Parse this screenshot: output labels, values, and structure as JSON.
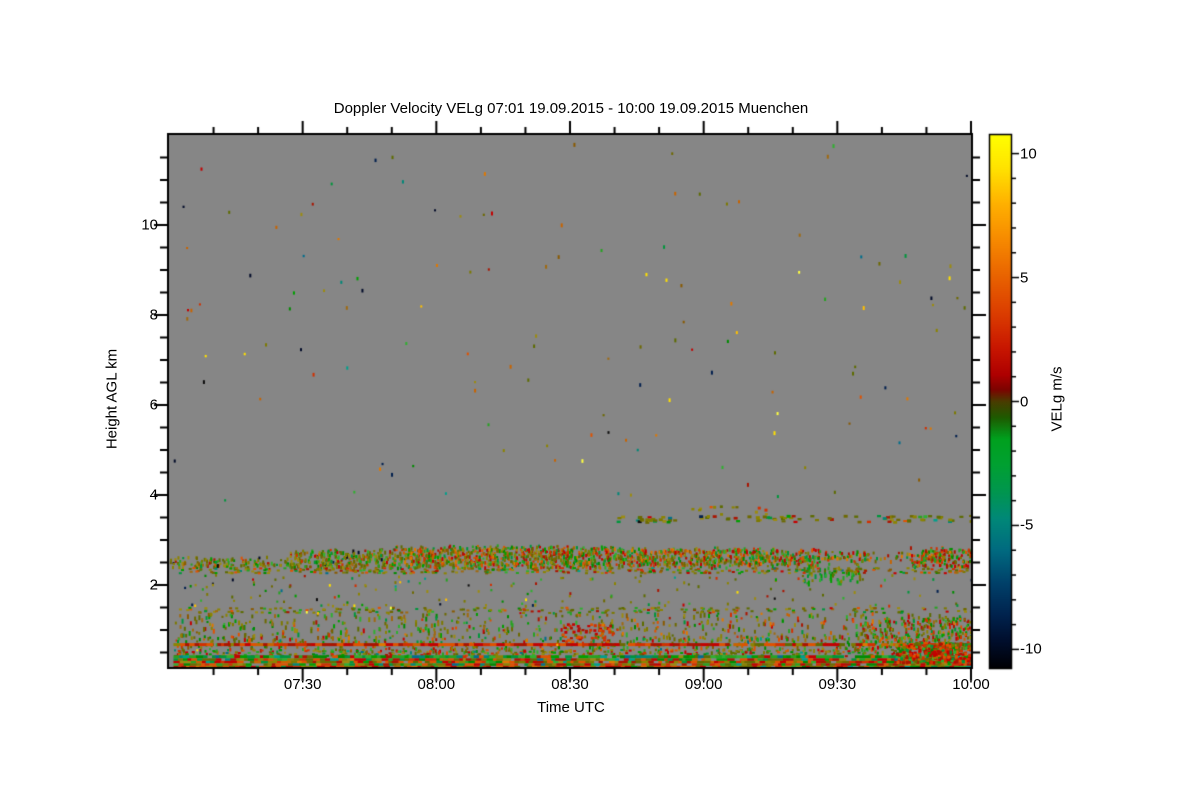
{
  "chart_data": {
    "type": "heatmap",
    "title": "Doppler Velocity VELg   07:01 19.09.2015 - 10:00 19.09.2015 Muenchen",
    "xlabel": "Time UTC",
    "ylabel": "Height AGL km",
    "plot_background": "#868686",
    "axis_color": "#000000",
    "x_axis": {
      "start_label": "07:01",
      "end_label": "10:00",
      "range_minutes": [
        420,
        600
      ],
      "minor_step_minutes": 10,
      "ticks": [
        {
          "minutes": 450,
          "label": "07:30"
        },
        {
          "minutes": 480,
          "label": "08:00"
        },
        {
          "minutes": 510,
          "label": "08:30"
        },
        {
          "minutes": 540,
          "label": "09:00"
        },
        {
          "minutes": 570,
          "label": "09:30"
        },
        {
          "minutes": 600,
          "label": "10:00"
        }
      ]
    },
    "y_axis": {
      "range_km": [
        0.178,
        12
      ],
      "minor_step_km": 0.5,
      "ticks": [
        {
          "km": 2,
          "label": "2"
        },
        {
          "km": 4,
          "label": "4"
        },
        {
          "km": 6,
          "label": "6"
        },
        {
          "km": 8,
          "label": "8"
        },
        {
          "km": 10,
          "label": "10"
        }
      ]
    },
    "colorbar": {
      "label": "VELg m/s",
      "value_min": -10.75,
      "value_max": 10.75,
      "minor_step": 1,
      "ticks": [
        {
          "value": 10,
          "label": "10"
        },
        {
          "value": 5,
          "label": "5"
        },
        {
          "value": 0,
          "label": "0"
        },
        {
          "value": -5,
          "label": "-5"
        },
        {
          "value": -10,
          "label": "-10"
        }
      ],
      "gradient_stops": [
        [
          0.0,
          "#ffff00"
        ],
        [
          0.06,
          "#ffe400"
        ],
        [
          0.13,
          "#ffb000"
        ],
        [
          0.2,
          "#f68800"
        ],
        [
          0.27,
          "#e86000"
        ],
        [
          0.34,
          "#da3a00"
        ],
        [
          0.4,
          "#c81600"
        ],
        [
          0.45,
          "#ae0000"
        ],
        [
          0.478,
          "#7c0400"
        ],
        [
          0.5,
          "#4a3c00"
        ],
        [
          0.53,
          "#1e5a00"
        ],
        [
          0.57,
          "#00a01e"
        ],
        [
          0.62,
          "#00a032"
        ],
        [
          0.67,
          "#00964f"
        ],
        [
          0.72,
          "#008878"
        ],
        [
          0.78,
          "#006a80"
        ],
        [
          0.84,
          "#00416a"
        ],
        [
          0.9,
          "#00234e"
        ],
        [
          0.95,
          "#000e2c"
        ],
        [
          1.0,
          "#000004"
        ]
      ]
    },
    "palettes": {
      "olive": [
        "#7d7a00",
        "#8c8400",
        "#6e6a00",
        "#9c8c10",
        "#5e6c00"
      ],
      "green": [
        "#00a000",
        "#008c00",
        "#27a322",
        "#00963c",
        "#30b030"
      ],
      "red": [
        "#c40000",
        "#d23000",
        "#aa1400",
        "#e05200"
      ],
      "orange": [
        "#e07800",
        "#c86400"
      ],
      "yellow": [
        "#ffe000",
        "#ffff40",
        "#ffc000"
      ],
      "teal": [
        "#008878",
        "#00a08c",
        "#006e8c"
      ],
      "dark": [
        "#001f4e",
        "#000a28",
        "#0c0c0c"
      ],
      "brown": [
        "#8a5a00",
        "#a06a10"
      ]
    },
    "features": [
      {
        "name": "upper-speckles",
        "type": "dots",
        "t": [
          421,
          599
        ],
        "km": [
          3.8,
          11.9
        ],
        "n": 135,
        "w": 2,
        "h": 4,
        "mix": {
          "olive": 3,
          "yellow": 2,
          "orange": 2,
          "red": 1.5,
          "teal": 1.5,
          "green": 1.5,
          "dark": 2,
          "brown": 1
        }
      },
      {
        "name": "dash-row-3500m",
        "type": "dots",
        "t": [
          520,
          600
        ],
        "km": [
          3.42,
          3.56
        ],
        "n": 90,
        "w": 4,
        "h": 3,
        "mix": {
          "olive": 8,
          "red": 1,
          "green": 1,
          "teal": 0.4,
          "dark": 0.4
        }
      },
      {
        "name": "dash-row-3650m",
        "type": "dots",
        "t": [
          537,
          555
        ],
        "km": [
          3.55,
          3.78
        ],
        "n": 14,
        "w": 3,
        "h": 3,
        "mix": {
          "olive": 6,
          "red": 1
        }
      },
      {
        "name": "cloud-band",
        "type": "band",
        "segments": [
          {
            "t": [
              420,
              447
            ],
            "top_km": 2.62,
            "bot_km": 2.42,
            "density": 0.55,
            "mixkey": "band_left"
          },
          {
            "t": [
              447,
              470
            ],
            "top_km": 2.78,
            "bot_km": 2.4,
            "density": 0.75,
            "mixkey": "band_left"
          },
          {
            "t": [
              470,
              520
            ],
            "top_km": 2.87,
            "bot_km": 2.42,
            "density": 0.85,
            "mixkey": "band_mid"
          },
          {
            "t": [
              520,
              556
            ],
            "top_km": 2.83,
            "bot_km": 2.45,
            "density": 0.85,
            "mixkey": "band_mid"
          },
          {
            "t": [
              556,
              566
            ],
            "top_km": 2.8,
            "bot_km": 2.48,
            "density": 0.75,
            "mixkey": "band_right"
          },
          {
            "t": [
              566,
              577
            ],
            "top_km": 2.76,
            "bot_km": 2.52,
            "density": 0.45,
            "mixkey": "band_right"
          },
          {
            "t": [
              577,
              586
            ],
            "top_km": 2.72,
            "bot_km": 2.56,
            "density": 0.3,
            "mixkey": "band_right"
          },
          {
            "t": [
              586,
              600
            ],
            "top_km": 2.82,
            "bot_km": 2.44,
            "density": 0.8,
            "mixkey": "band_right"
          }
        ],
        "mixes": {
          "band_left": {
            "olive": 5,
            "green": 2.5,
            "red": 1.2,
            "brown": 0.8,
            "dark": 0.3
          },
          "band_mid": {
            "olive": 3.2,
            "green": 2.7,
            "red": 2.5,
            "orange": 1.0,
            "brown": 0.6
          },
          "band_right": {
            "red": 3.8,
            "olive": 2.8,
            "green": 2.8,
            "orange": 0.6
          }
        }
      },
      {
        "name": "green-streaks-0930",
        "type": "dots",
        "t": [
          562,
          575
        ],
        "km": [
          2.05,
          2.5
        ],
        "n": 60,
        "w": 2,
        "h": 6,
        "mix": {
          "green": 8,
          "olive": 2
        }
      },
      {
        "name": "dot-row-under-band",
        "type": "dots",
        "t": [
          421,
          600
        ],
        "km": [
          2.28,
          2.4
        ],
        "n": 330,
        "w": 3,
        "h": 2,
        "mix": {
          "olive": 5,
          "green": 2,
          "red": 2,
          "brown": 1,
          "teal": 0.3
        }
      },
      {
        "name": "mid-sparse-speckles",
        "type": "dots",
        "t": [
          421,
          600
        ],
        "km": [
          1.55,
          2.25
        ],
        "n": 150,
        "w": 2,
        "h": 3,
        "mix": {
          "olive": 5,
          "green": 2,
          "red": 1,
          "yellow": 0.3,
          "teal": 0.3,
          "dark": 0.3
        }
      },
      {
        "name": "dot-row-1450m",
        "type": "dots",
        "t": [
          421,
          600
        ],
        "km": [
          1.4,
          1.52
        ],
        "n": 220,
        "w": 3,
        "h": 2,
        "mix": {
          "olive": 6,
          "green": 2,
          "red": 1,
          "brown": 1
        }
      },
      {
        "name": "low-streaks",
        "type": "dots",
        "t": [
          421,
          600
        ],
        "km": [
          0.85,
          1.4
        ],
        "n": 520,
        "w": 2,
        "h": 5,
        "mix": {
          "olive": 4,
          "green": 3,
          "red": 1.5,
          "brown": 1,
          "orange": 0.5
        }
      },
      {
        "name": "lower-streaks-dense",
        "type": "dots",
        "t": [
          421,
          600
        ],
        "km": [
          0.48,
          0.88
        ],
        "n": 650,
        "w": 2,
        "h": 4,
        "mix": {
          "olive": 4,
          "green": 3,
          "red": 2,
          "brown": 1,
          "orange": 0.5,
          "teal": 0.3
        }
      },
      {
        "name": "red-cluster-0830",
        "type": "dots",
        "t": [
          508,
          520
        ],
        "km": [
          0.75,
          1.15
        ],
        "n": 55,
        "w": 3,
        "h": 3,
        "mix": {
          "red": 8,
          "orange": 1,
          "olive": 1
        }
      },
      {
        "name": "right-dense-speckles",
        "type": "dots",
        "t": [
          575,
          600
        ],
        "km": [
          0.6,
          1.3
        ],
        "n": 220,
        "w": 2,
        "h": 4,
        "mix": {
          "green": 3,
          "red": 3,
          "olive": 3
        }
      },
      {
        "name": "red-line-main",
        "type": "hline",
        "km": 0.675,
        "t": [
          421,
          545
        ],
        "thick": 3,
        "coverage": 0.96,
        "mix": {
          "red": 9,
          "orange": 0.6,
          "olive": 0.4
        }
      },
      {
        "name": "red-line-right",
        "type": "hline",
        "km": 0.675,
        "t": [
          545,
          600
        ],
        "thick": 3,
        "coverage": 0.75,
        "mix": {
          "red": 5,
          "olive": 4,
          "orange": 1
        }
      },
      {
        "name": "speckles-above-greenline",
        "type": "dots",
        "t": [
          421,
          600
        ],
        "km": [
          0.44,
          0.58
        ],
        "n": 260,
        "w": 3,
        "h": 2,
        "mix": {
          "olive": 4,
          "green": 2,
          "red": 2,
          "teal": 0.5
        }
      },
      {
        "name": "green-line",
        "type": "hline",
        "km": 0.405,
        "t": [
          421,
          600
        ],
        "thick": 3,
        "coverage": 0.9,
        "mix": {
          "green": 7,
          "teal": 1.5,
          "red": 1,
          "olive": 0.5
        }
      },
      {
        "name": "bottom-dense-band",
        "type": "hband",
        "km": [
          0.2,
          0.37
        ],
        "t": [
          421,
          600
        ],
        "coverage": 0.95,
        "mix": {
          "red": 4,
          "olive": 3,
          "green": 2,
          "orange": 0.6,
          "teal": 0.4
        }
      },
      {
        "name": "red-cluster-bottom-right",
        "type": "dots",
        "t": [
          583,
          600
        ],
        "km": [
          0.3,
          0.75
        ],
        "n": 330,
        "w": 3,
        "h": 4,
        "mix": {
          "red": 6,
          "green": 2.5,
          "olive": 1.5
        }
      },
      {
        "name": "yellow-outliers",
        "type": "dots",
        "t": [
          421,
          600
        ],
        "km": [
          0.5,
          2.3
        ],
        "n": 7,
        "w": 2,
        "h": 3,
        "mix": {
          "yellow": 1
        }
      }
    ]
  }
}
